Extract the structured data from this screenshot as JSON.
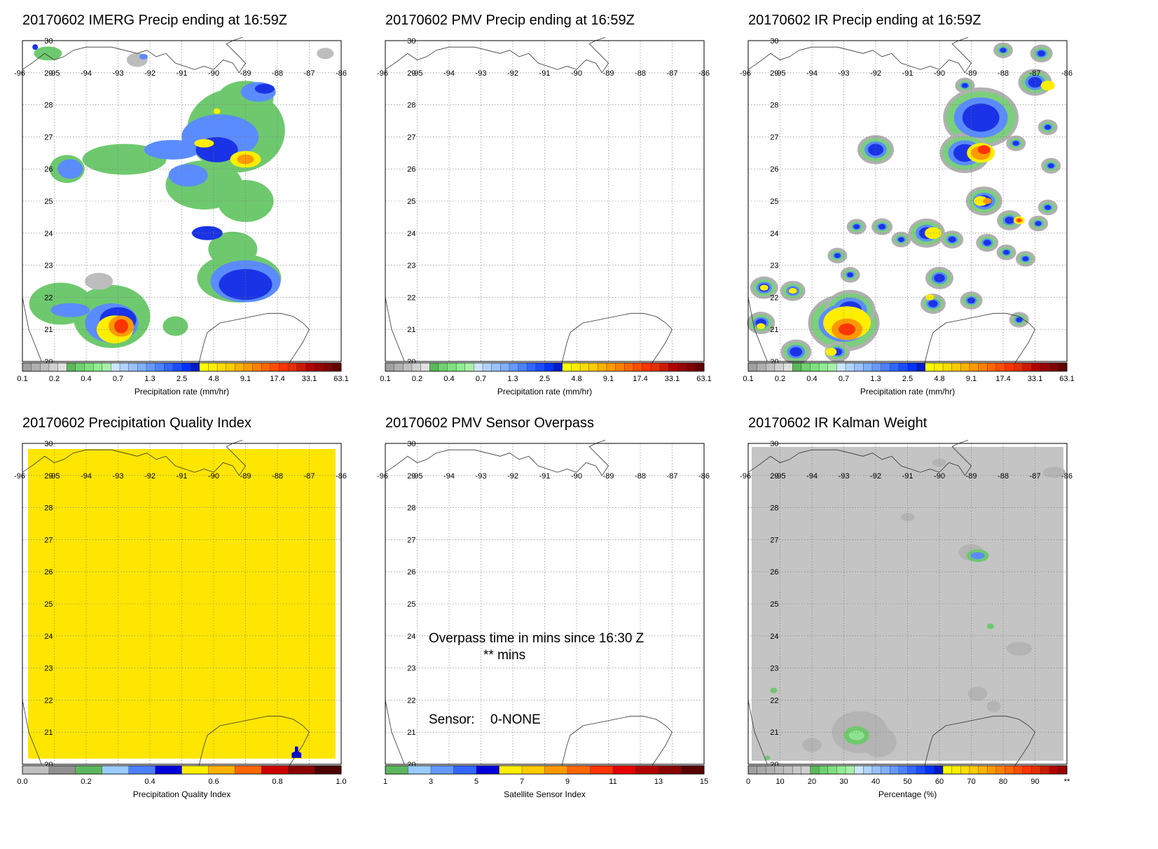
{
  "panels": [
    {
      "id": "imerg",
      "title": "20170602 IMERG Precip ending at 16:59Z",
      "colorbar": "precip",
      "fill": "imerg"
    },
    {
      "id": "pmv",
      "title": "20170602 PMV Precip ending at 16:59Z",
      "colorbar": "precip",
      "fill": "none"
    },
    {
      "id": "ir",
      "title": "20170602 IR Precip ending at 16:59Z",
      "colorbar": "precip",
      "fill": "ir"
    },
    {
      "id": "pqi",
      "title": "20170602 Precipitation Quality Index",
      "colorbar": "quality",
      "fill": "quality"
    },
    {
      "id": "overpass",
      "title": "20170602 PMV Sensor Overpass",
      "colorbar": "sensor",
      "fill": "none"
    },
    {
      "id": "kalman",
      "title": "20170602 IR Kalman Weight",
      "colorbar": "percent",
      "fill": "kalman"
    }
  ],
  "map_axes": {
    "lon_labels": [
      "-96",
      "-95",
      "-94",
      "-93",
      "-92",
      "-91",
      "-90",
      "-89",
      "-88",
      "-87",
      "-86"
    ],
    "lat_labels": [
      "20",
      "21",
      "22",
      "23",
      "24",
      "25",
      "26",
      "27",
      "28",
      "29",
      "30"
    ],
    "lon_range": [
      -96,
      -86
    ],
    "lat_range": [
      20,
      30
    ]
  },
  "colorbars": {
    "precip": {
      "title": "Precipitation rate (mm/hr)",
      "ticks": [
        "0.1",
        "0.2",
        "0.4",
        "0.7",
        "1.3",
        "2.5",
        "4.8",
        "9.1",
        "17.4",
        "33.1",
        "63.1"
      ],
      "colors": [
        "#a0a0a0",
        "#b0b0b0",
        "#c0c0c0",
        "#d0d0d0",
        "#e0e0e0",
        "#5cb85c",
        "#6ed36e",
        "#80e080",
        "#90ee90",
        "#a8f0a8",
        "#cce6ff",
        "#b0d4ff",
        "#99c2ff",
        "#80b0ff",
        "#6699ff",
        "#4d80ff",
        "#3366ff",
        "#1a4dff",
        "#0033ff",
        "#001acc",
        "#ffff00",
        "#ffee00",
        "#ffdd00",
        "#ffcc00",
        "#ffb300",
        "#ff9900",
        "#ff8000",
        "#ff6600",
        "#ff4d00",
        "#ff3300",
        "#e62e00",
        "#cc1a00",
        "#b30000",
        "#990000",
        "#800000",
        "#660000"
      ]
    },
    "quality": {
      "title": "Precipitation Quality Index",
      "ticks": [
        "0.0",
        "0.2",
        "0.4",
        "0.6",
        "0.8",
        "1.0"
      ],
      "colors": [
        "#c0c0c0",
        "#909090",
        "#5cb85c",
        "#99ccff",
        "#4d80ff",
        "#0000dd",
        "#ffee00",
        "#ffb300",
        "#ff6600",
        "#cc0000",
        "#8b0000",
        "#4d0000"
      ]
    },
    "sensor": {
      "title": "Satellite Sensor Index",
      "ticks": [
        "1",
        "3",
        "5",
        "7",
        "9",
        "11",
        "13",
        "15"
      ],
      "colors": [
        "#5cb85c",
        "#99ccff",
        "#6699ff",
        "#3366ff",
        "#0000dd",
        "#ffee00",
        "#ffcc00",
        "#ff9900",
        "#ff6600",
        "#ff3300",
        "#e60000",
        "#b30000",
        "#8b0000",
        "#5a0000"
      ]
    },
    "percent": {
      "title": "Percentage (%)",
      "ticks": [
        "0",
        "10",
        "20",
        "30",
        "40",
        "50",
        "60",
        "70",
        "80",
        "90",
        "**"
      ],
      "colors": [
        "#a0a0a0",
        "#a8a8a8",
        "#b0b0b0",
        "#b8b8b8",
        "#c0c0c0",
        "#c8c8c8",
        "#d0d0d0",
        "#5cb85c",
        "#6ed36e",
        "#80e080",
        "#90ee90",
        "#a8f0a8",
        "#cce6ff",
        "#b0d4ff",
        "#99c2ff",
        "#80b0ff",
        "#6699ff",
        "#4d80ff",
        "#3366ff",
        "#1a4dff",
        "#0033ff",
        "#001acc",
        "#ffff00",
        "#ffee00",
        "#ffdd00",
        "#ffcc00",
        "#ffb300",
        "#ff9900",
        "#ff8000",
        "#ff6600",
        "#ff4d00",
        "#ff3300",
        "#e62e00",
        "#cc1a00",
        "#b30000",
        "#990000"
      ]
    }
  },
  "overpass_note": {
    "line1": "Overpass time in mins since 16:30 Z",
    "line2": "** mins",
    "sensor_label": "Sensor:",
    "sensor_value": "0-NONE"
  }
}
